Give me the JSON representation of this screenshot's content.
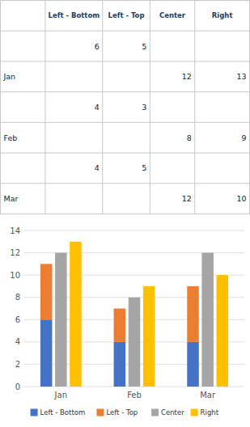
{
  "chart_data": {
    "type": "bar",
    "categories": [
      "Jan",
      "Feb",
      "Mar"
    ],
    "series": [
      {
        "name": "Left - Bottom",
        "color": "#4472C4",
        "type": "stacked_bar",
        "values": [
          6,
          4,
          4
        ]
      },
      {
        "name": "Left - Top",
        "color": "#ED7D31",
        "type": "stacked_bar",
        "values": [
          5,
          3,
          5
        ]
      },
      {
        "name": "Center",
        "color": "#A5A5A5",
        "type": "bar",
        "values": [
          12,
          8,
          12
        ]
      },
      {
        "name": "Right",
        "color": "#FFC000",
        "type": "bar",
        "values": [
          13,
          9,
          10
        ]
      }
    ],
    "ylim": [
      0,
      14
    ],
    "yticks": [
      0,
      2,
      4,
      6,
      8,
      10,
      12,
      14
    ],
    "grid": true,
    "legend": "bottom"
  }
}
